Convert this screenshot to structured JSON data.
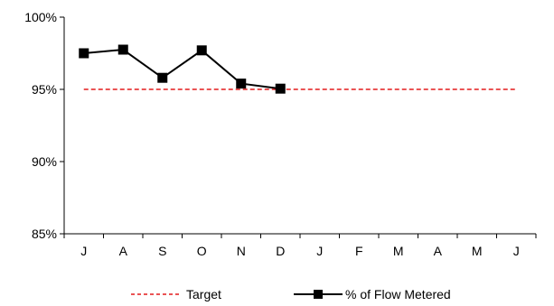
{
  "chart_data": {
    "type": "line",
    "categories": [
      "J",
      "A",
      "S",
      "O",
      "N",
      "D",
      "J",
      "F",
      "M",
      "A",
      "M",
      "J"
    ],
    "y_ticks": [
      "85%",
      "90%",
      "95%",
      "100%"
    ],
    "ylim": [
      85,
      100
    ],
    "grid": false,
    "legend_position": "bottom",
    "series": [
      {
        "name": "Target",
        "style": "dashed",
        "color": "#e31a1c",
        "values": [
          95,
          95,
          95,
          95,
          95,
          95,
          95,
          95,
          95,
          95,
          95,
          95
        ]
      },
      {
        "name": "% of Flow Metered",
        "style": "line-square-marker",
        "color": "#000000",
        "values": [
          97.5,
          97.75,
          95.8,
          97.7,
          95.4,
          95.05,
          null,
          null,
          null,
          null,
          null,
          null
        ]
      }
    ]
  }
}
